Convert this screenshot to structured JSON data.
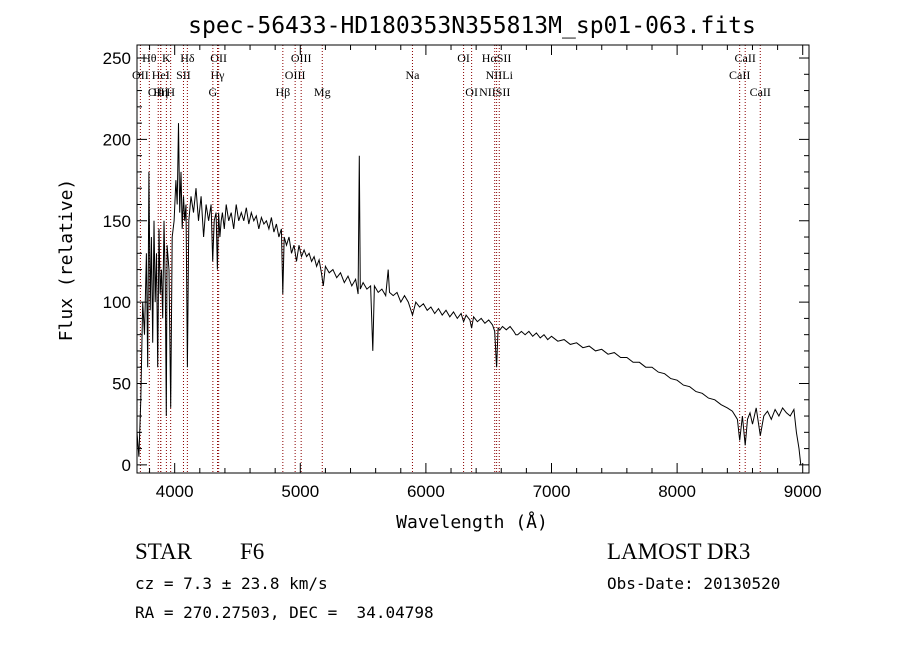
{
  "chart_data": {
    "type": "line",
    "title": "spec-56433-HD180353N355813M_sp01-063.fits",
    "xlabel": "Wavelength (Å)",
    "ylabel": "Flux (relative)",
    "xlim": [
      3700,
      9050
    ],
    "ylim": [
      -5,
      258
    ],
    "xticks": [
      4000,
      5000,
      6000,
      7000,
      8000,
      9000
    ],
    "yticks": [
      0,
      50,
      100,
      150,
      200,
      250
    ],
    "line_color": "#000000",
    "marker_color": "#8b0000",
    "series": [
      {
        "name": "flux",
        "points": [
          [
            3700,
            20
          ],
          [
            3715,
            5
          ],
          [
            3730,
            40
          ],
          [
            3745,
            100
          ],
          [
            3760,
            80
          ],
          [
            3775,
            130
          ],
          [
            3785,
            60
          ],
          [
            3795,
            180
          ],
          [
            3805,
            95
          ],
          [
            3815,
            140
          ],
          [
            3825,
            75
          ],
          [
            3835,
            150
          ],
          [
            3845,
            100
          ],
          [
            3855,
            130
          ],
          [
            3865,
            60
          ],
          [
            3875,
            145
          ],
          [
            3885,
            105
          ],
          [
            3895,
            120
          ],
          [
            3905,
            90
          ],
          [
            3915,
            150
          ],
          [
            3925,
            110
          ],
          [
            3933,
            30
          ],
          [
            3940,
            135
          ],
          [
            3955,
            120
          ],
          [
            3968,
            35
          ],
          [
            3980,
            140
          ],
          [
            3995,
            150
          ],
          [
            4010,
            175
          ],
          [
            4020,
            160
          ],
          [
            4030,
            210
          ],
          [
            4040,
            155
          ],
          [
            4050,
            180
          ],
          [
            4060,
            145
          ],
          [
            4070,
            165
          ],
          [
            4080,
            150
          ],
          [
            4090,
            160
          ],
          [
            4101,
            60
          ],
          [
            4112,
            150
          ],
          [
            4130,
            165
          ],
          [
            4150,
            155
          ],
          [
            4170,
            170
          ],
          [
            4190,
            150
          ],
          [
            4210,
            165
          ],
          [
            4230,
            140
          ],
          [
            4250,
            160
          ],
          [
            4270,
            150
          ],
          [
            4290,
            160
          ],
          [
            4303,
            125
          ],
          [
            4315,
            150
          ],
          [
            4330,
            155
          ],
          [
            4340,
            120
          ],
          [
            4350,
            155
          ],
          [
            4360,
            140
          ],
          [
            4370,
            150
          ],
          [
            4380,
            155
          ],
          [
            4395,
            145
          ],
          [
            4410,
            160
          ],
          [
            4430,
            150
          ],
          [
            4450,
            155
          ],
          [
            4470,
            145
          ],
          [
            4490,
            160
          ],
          [
            4510,
            150
          ],
          [
            4530,
            155
          ],
          [
            4550,
            150
          ],
          [
            4570,
            158
          ],
          [
            4590,
            148
          ],
          [
            4610,
            155
          ],
          [
            4630,
            150
          ],
          [
            4650,
            153
          ],
          [
            4670,
            145
          ],
          [
            4690,
            152
          ],
          [
            4710,
            148
          ],
          [
            4730,
            150
          ],
          [
            4750,
            145
          ],
          [
            4770,
            152
          ],
          [
            4790,
            143
          ],
          [
            4810,
            148
          ],
          [
            4830,
            140
          ],
          [
            4850,
            145
          ],
          [
            4861,
            105
          ],
          [
            4872,
            140
          ],
          [
            4890,
            135
          ],
          [
            4910,
            140
          ],
          [
            4930,
            130
          ],
          [
            4950,
            135
          ],
          [
            4970,
            125
          ],
          [
            4990,
            135
          ],
          [
            5010,
            128
          ],
          [
            5030,
            132
          ],
          [
            5050,
            128
          ],
          [
            5070,
            130
          ],
          [
            5090,
            125
          ],
          [
            5110,
            128
          ],
          [
            5130,
            122
          ],
          [
            5150,
            126
          ],
          [
            5168,
            118
          ],
          [
            5183,
            110
          ],
          [
            5200,
            122
          ],
          [
            5230,
            118
          ],
          [
            5260,
            120
          ],
          [
            5290,
            115
          ],
          [
            5320,
            118
          ],
          [
            5350,
            112
          ],
          [
            5380,
            116
          ],
          [
            5410,
            110
          ],
          [
            5440,
            114
          ],
          [
            5460,
            105
          ],
          [
            5470,
            190
          ],
          [
            5478,
            108
          ],
          [
            5500,
            112
          ],
          [
            5530,
            108
          ],
          [
            5560,
            110
          ],
          [
            5577,
            70
          ],
          [
            5590,
            110
          ],
          [
            5620,
            106
          ],
          [
            5650,
            108
          ],
          [
            5680,
            104
          ],
          [
            5700,
            120
          ],
          [
            5710,
            106
          ],
          [
            5740,
            104
          ],
          [
            5770,
            106
          ],
          [
            5800,
            100
          ],
          [
            5830,
            104
          ],
          [
            5860,
            100
          ],
          [
            5893,
            92
          ],
          [
            5920,
            100
          ],
          [
            5950,
            97
          ],
          [
            5980,
            99
          ],
          [
            6010,
            95
          ],
          [
            6040,
            97
          ],
          [
            6070,
            93
          ],
          [
            6100,
            96
          ],
          [
            6130,
            92
          ],
          [
            6160,
            95
          ],
          [
            6190,
            91
          ],
          [
            6220,
            94
          ],
          [
            6250,
            90
          ],
          [
            6280,
            93
          ],
          [
            6300,
            88
          ],
          [
            6320,
            92
          ],
          [
            6350,
            89
          ],
          [
            6364,
            84
          ],
          [
            6380,
            91
          ],
          [
            6410,
            88
          ],
          [
            6440,
            90
          ],
          [
            6470,
            87
          ],
          [
            6500,
            89
          ],
          [
            6530,
            86
          ],
          [
            6548,
            82
          ],
          [
            6563,
            60
          ],
          [
            6575,
            84
          ],
          [
            6590,
            83
          ],
          [
            6610,
            85
          ],
          [
            6640,
            83
          ],
          [
            6670,
            85
          ],
          [
            6700,
            82
          ],
          [
            6716,
            80
          ],
          [
            6731,
            80
          ],
          [
            6760,
            82
          ],
          [
            6790,
            80
          ],
          [
            6820,
            82
          ],
          [
            6850,
            79
          ],
          [
            6880,
            81
          ],
          [
            6910,
            78
          ],
          [
            6940,
            80
          ],
          [
            6970,
            77
          ],
          [
            7000,
            79
          ],
          [
            7050,
            76
          ],
          [
            7100,
            77
          ],
          [
            7150,
            74
          ],
          [
            7200,
            75
          ],
          [
            7250,
            72
          ],
          [
            7300,
            73
          ],
          [
            7350,
            70
          ],
          [
            7400,
            71
          ],
          [
            7450,
            68
          ],
          [
            7500,
            69
          ],
          [
            7550,
            66
          ],
          [
            7600,
            66
          ],
          [
            7650,
            63
          ],
          [
            7700,
            63
          ],
          [
            7750,
            60
          ],
          [
            7800,
            60
          ],
          [
            7850,
            57
          ],
          [
            7900,
            56
          ],
          [
            7950,
            53
          ],
          [
            8000,
            52
          ],
          [
            8050,
            49
          ],
          [
            8100,
            48
          ],
          [
            8150,
            45
          ],
          [
            8200,
            44
          ],
          [
            8250,
            41
          ],
          [
            8300,
            40
          ],
          [
            8350,
            37
          ],
          [
            8400,
            35
          ],
          [
            8440,
            33
          ],
          [
            8480,
            28
          ],
          [
            8498,
            15
          ],
          [
            8520,
            30
          ],
          [
            8542,
            12
          ],
          [
            8560,
            28
          ],
          [
            8580,
            32
          ],
          [
            8600,
            25
          ],
          [
            8630,
            35
          ],
          [
            8662,
            18
          ],
          [
            8690,
            30
          ],
          [
            8720,
            33
          ],
          [
            8750,
            28
          ],
          [
            8780,
            34
          ],
          [
            8810,
            30
          ],
          [
            8840,
            35
          ],
          [
            8870,
            32
          ],
          [
            8900,
            30
          ],
          [
            8930,
            34
          ],
          [
            8950,
            20
          ],
          [
            8970,
            10
          ],
          [
            8985,
            0
          ]
        ]
      }
    ],
    "lines": [
      {
        "name": "Hδ upper",
        "label": "Hδ",
        "x": 4101,
        "level": 0
      },
      {
        "name": "K",
        "label": "K",
        "x": 3934,
        "level": 0
      },
      {
        "name": "Hθ",
        "label": "Hθ",
        "x": 3798,
        "level": 0
      },
      {
        "name": "OII upper",
        "label": "OII",
        "x": 4350,
        "level": 0
      },
      {
        "name": "OIII upper",
        "label": "OIII",
        "x": 5007,
        "level": 0
      },
      {
        "name": "OI upper",
        "label": "OI",
        "x": 6300,
        "level": 0
      },
      {
        "name": "HαSII",
        "label": "HαSII",
        "x": 6563,
        "level": 0
      },
      {
        "name": "CaII upper",
        "label": "CaII",
        "x": 8542,
        "level": 0
      },
      {
        "name": "OII mid",
        "label": "OII",
        "x": 3727,
        "level": 1
      },
      {
        "name": "HeI",
        "label": "HeI",
        "x": 3889,
        "level": 1
      },
      {
        "name": "SII mid",
        "label": "SII",
        "x": 4070,
        "level": 1
      },
      {
        "name": "Hγ",
        "label": "Hγ",
        "x": 4341,
        "level": 1
      },
      {
        "name": "OIII mid",
        "label": "OIII",
        "x": 4959,
        "level": 1
      },
      {
        "name": "Na",
        "label": "Na",
        "x": 5893,
        "level": 1
      },
      {
        "name": "NIILi",
        "label": "NIILi",
        "x": 6584,
        "level": 1
      },
      {
        "name": "CaII mid",
        "label": "CaII",
        "x": 8498,
        "level": 1
      },
      {
        "name": "OIII low",
        "label": "OIII",
        "x": 3869,
        "level": 2
      },
      {
        "name": "Hη",
        "label": "Hη",
        "x": 3889,
        "level": 2
      },
      {
        "name": "H",
        "label": "H",
        "x": 3968,
        "level": 2
      },
      {
        "name": "G",
        "label": "G",
        "x": 4304,
        "level": 2
      },
      {
        "name": "Hβ",
        "label": "Hβ",
        "x": 4861,
        "level": 2
      },
      {
        "name": "Mg",
        "label": "Mg",
        "x": 5175,
        "level": 2
      },
      {
        "name": "OI low",
        "label": "OI",
        "x": 6364,
        "level": 2
      },
      {
        "name": "NIISII",
        "label": "NIISII",
        "x": 6548,
        "level": 2
      },
      {
        "name": "CaII low",
        "label": "CaII",
        "x": 8662,
        "level": 2
      }
    ]
  },
  "footer": {
    "object_class": "STAR",
    "subclass": "F6",
    "survey": "LAMOST DR3",
    "redshift": "cz = 7.3 ± 23.8 km/s",
    "obs_date": "Obs-Date: 20130520",
    "coords": "RA = 270.27503, DEC =  34.04798"
  }
}
